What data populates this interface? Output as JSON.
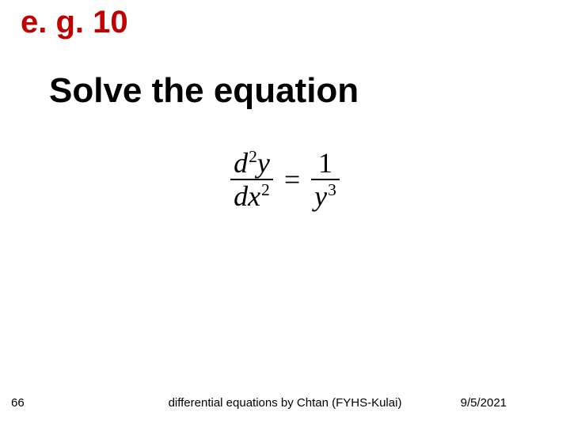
{
  "slide": {
    "title": "e. g. 10",
    "subtitle": "Solve the equation",
    "title_color": "#c00000",
    "subtitle_color": "#000000",
    "background_color": "#ffffff",
    "title_fontsize": 40,
    "subtitle_fontsize": 44
  },
  "equation": {
    "lhs": {
      "num_d": "d",
      "num_sup": "2",
      "num_y": "y",
      "den_d": "dx",
      "den_sup": "2"
    },
    "eq": "=",
    "rhs": {
      "num": "1",
      "den_y": "y",
      "den_sup": "3"
    },
    "font_family": "Times New Roman",
    "fontsize": 36,
    "color": "#000000"
  },
  "footer": {
    "page": "66",
    "center": "differential equations  by Chtan (FYHS-Kulai)",
    "date": "9/5/2021",
    "fontsize": 15,
    "color": "#000000"
  }
}
